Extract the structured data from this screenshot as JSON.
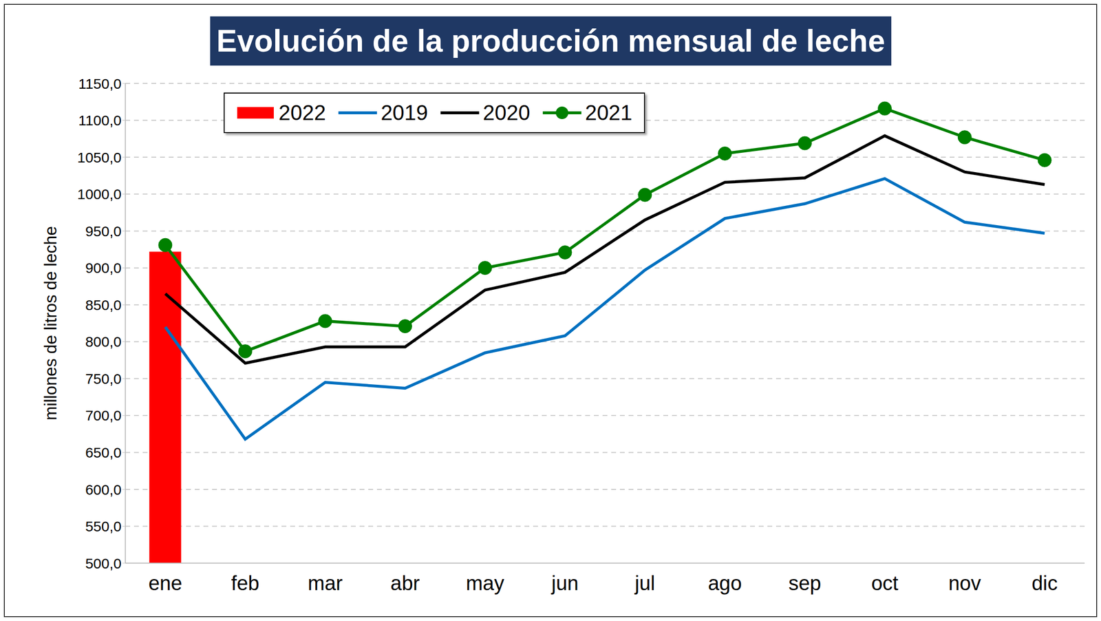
{
  "chart_data": {
    "type": "line",
    "title": "Evolución de la producción mensual de leche",
    "y_label": "millones de litros de leche",
    "categories": [
      "ene",
      "feb",
      "mar",
      "abr",
      "may",
      "jun",
      "jul",
      "ago",
      "sep",
      "oct",
      "nov",
      "dic"
    ],
    "series": [
      {
        "name": "2022",
        "type": "bar",
        "color": "#ff0000",
        "values": [
          922,
          null,
          null,
          null,
          null,
          null,
          null,
          null,
          null,
          null,
          null,
          null
        ]
      },
      {
        "name": "2019",
        "type": "line",
        "color": "#0070c0",
        "marker": "none",
        "values": [
          820,
          668,
          745,
          737,
          785,
          808,
          897,
          967,
          987,
          1021,
          962,
          947
        ]
      },
      {
        "name": "2020",
        "type": "line",
        "color": "#000000",
        "marker": "none",
        "values": [
          865,
          771,
          793,
          793,
          870,
          894,
          965,
          1016,
          1022,
          1079,
          1030,
          1013
        ]
      },
      {
        "name": "2021",
        "type": "line",
        "color": "#008000",
        "marker": "circle",
        "values": [
          931,
          787,
          828,
          821,
          900,
          921,
          999,
          1055,
          1069,
          1116,
          1077,
          1046
        ]
      }
    ],
    "ylim": [
      500,
      1150
    ],
    "yticks": [
      {
        "value": 500,
        "label": "500,0"
      },
      {
        "value": 550,
        "label": "550,0"
      },
      {
        "value": 600,
        "label": "600,0"
      },
      {
        "value": 650,
        "label": "650,0"
      },
      {
        "value": 700,
        "label": "700,0"
      },
      {
        "value": 750,
        "label": "750,0"
      },
      {
        "value": 800,
        "label": "800,0"
      },
      {
        "value": 850,
        "label": "850,0"
      },
      {
        "value": 900,
        "label": "900,0"
      },
      {
        "value": 950,
        "label": "950,0"
      },
      {
        "value": 1000,
        "label": "1000,0"
      },
      {
        "value": 1050,
        "label": "1050,0"
      },
      {
        "value": 1100,
        "label": "1100,0"
      },
      {
        "value": 1150,
        "label": "1150,0"
      }
    ],
    "grid": true,
    "legend": "top-left"
  }
}
